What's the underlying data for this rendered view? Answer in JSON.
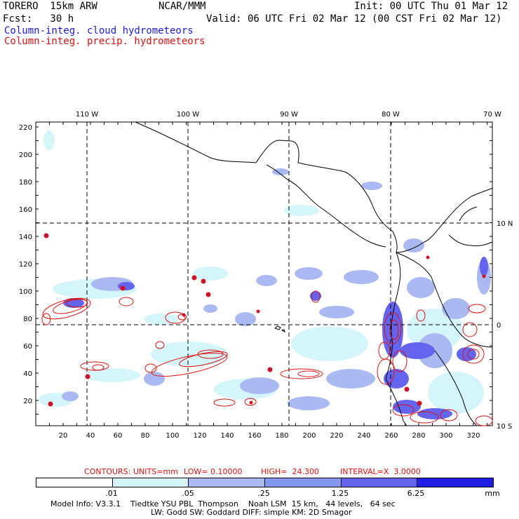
{
  "header": {
    "model_run": "TORERO  15km ARW",
    "center": "NCAR/MMM",
    "init": "Init: 00 UTC Thu 01 Mar 12",
    "fcst": "Fcst:   30 h",
    "valid": "Valid: 06 UTC Fri 02 Mar 12 (00 CST Fri 02 Mar 12)",
    "field_cloud": "Column-integ. cloud hydrometeors",
    "field_precip": "Column-integ. precip. hydrometeors"
  },
  "colors": {
    "cloud_text": "#1c1cd8",
    "precip_text": "#e01010",
    "contour": "#e01010",
    "shade_levels": [
      "#ffffff",
      "#d4f6fb",
      "#aab9f2",
      "#8596ef",
      "#6464ee",
      "#4e55f0",
      "#1e1ee6"
    ]
  },
  "axes": {
    "top_lon": [
      "110 W",
      "100 W",
      "90 W",
      "80 W",
      "70 W"
    ],
    "right_lat": [
      "10 N",
      "0",
      "10 S"
    ],
    "left_grid": [
      "220",
      "200",
      "180",
      "160",
      "140",
      "120",
      "100",
      "80",
      "60",
      "40",
      "20"
    ],
    "bottom_grid": [
      "20",
      "40",
      "60",
      "80",
      "100",
      "120",
      "140",
      "160",
      "180",
      "200",
      "220",
      "240",
      "260",
      "280",
      "300",
      "320"
    ]
  },
  "contour_info": {
    "label": "CONTOURS:",
    "units": "UNITS=mm",
    "low": "LOW= 0.10000",
    "high": "HIGH=  24.300",
    "interval": "INTERVAL=X  3.0000"
  },
  "legend": {
    "labels": [
      ".01",
      ".05",
      ".25",
      "1.25",
      "6.25"
    ],
    "units": "mm"
  },
  "footer": {
    "line1": "Model Info: V3.3.1    Tiedtke YSU PBL  Thompson    Noah LSM  15 km,   44 levels,   64 sec",
    "line2": "LW: Godd SW: Goddard DIFF: simple KM: 2D Smagor"
  }
}
